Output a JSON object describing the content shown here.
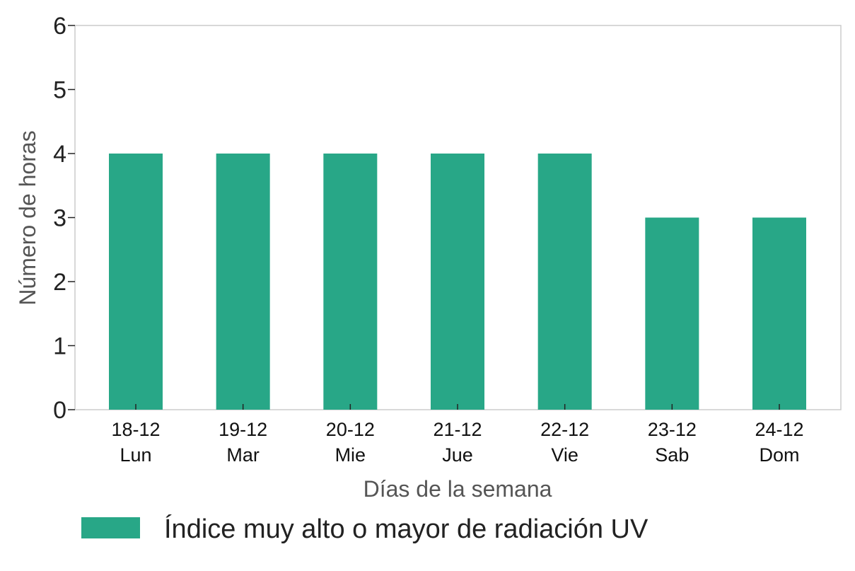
{
  "chart_data": {
    "type": "bar",
    "categories": [
      {
        "date": "18-12",
        "day": "Lun"
      },
      {
        "date": "19-12",
        "day": "Mar"
      },
      {
        "date": "20-12",
        "day": "Mie"
      },
      {
        "date": "21-12",
        "day": "Jue"
      },
      {
        "date": "22-12",
        "day": "Vie"
      },
      {
        "date": "23-12",
        "day": "Sab"
      },
      {
        "date": "24-12",
        "day": "Dom"
      }
    ],
    "series": [
      {
        "name": "Índice muy alto o mayor de radiación UV",
        "color": "#28a787",
        "values": [
          4,
          4,
          4,
          4,
          4,
          3,
          3
        ]
      }
    ],
    "xlabel": "Días de la semana",
    "ylabel": "Número de horas",
    "ylim": [
      0,
      6
    ],
    "yticks": [
      0,
      1,
      2,
      3,
      4,
      5,
      6
    ],
    "grid": false,
    "legend": "bottom-left"
  }
}
